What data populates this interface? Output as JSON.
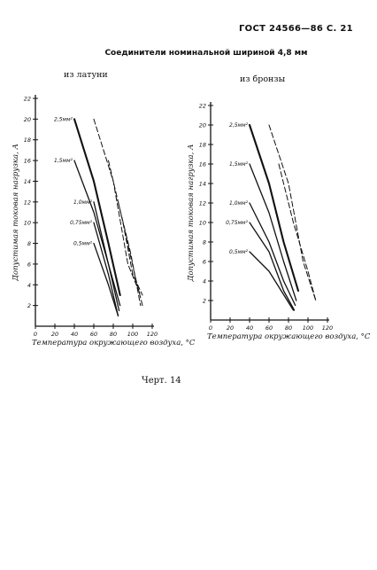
{
  "header": {
    "standard": "ГОСТ 24566—86 С. 21"
  },
  "title": "Соединители номинальной шириной 4,8 мм",
  "caption": "Черт. 14",
  "chart_data": [
    {
      "type": "line",
      "subtitle": "из латуни",
      "xlabel": "Температура окружающего воздуха, °С",
      "ylabel": "Допустимая токовая нагрузка, А",
      "xlim": [
        0,
        120
      ],
      "ylim": [
        0,
        22
      ],
      "xticks": [
        0,
        20,
        40,
        60,
        80,
        100,
        120
      ],
      "yticks": [
        2,
        4,
        6,
        8,
        10,
        12,
        14,
        16,
        18,
        20,
        22
      ],
      "series": [
        {
          "name": "2,5мм²",
          "style": "solid-heavy",
          "points": [
            [
              40,
              20
            ],
            [
              60,
              14
            ],
            [
              75,
              8
            ],
            [
              87,
              3
            ]
          ]
        },
        {
          "name": "1,5мм²",
          "style": "solid",
          "points": [
            [
              40,
              16
            ],
            [
              60,
              11
            ],
            [
              75,
              6
            ],
            [
              87,
              2
            ]
          ]
        },
        {
          "name": "1,0мм²",
          "style": "solid",
          "points": [
            [
              60,
              12
            ],
            [
              75,
              6
            ],
            [
              86,
              1.5
            ]
          ]
        },
        {
          "name": "0,75мм²",
          "style": "solid",
          "points": [
            [
              60,
              10
            ],
            [
              75,
              5
            ],
            [
              85,
              1
            ]
          ]
        },
        {
          "name": "0,5мм²",
          "style": "solid",
          "points": [
            [
              60,
              8
            ],
            [
              75,
              4
            ],
            [
              85,
              1
            ]
          ]
        },
        {
          "name": "",
          "style": "dashed",
          "points": [
            [
              60,
              20
            ],
            [
              80,
              14
            ],
            [
              95,
              6
            ],
            [
              108,
              3
            ]
          ]
        },
        {
          "name": "",
          "style": "dashed",
          "points": [
            [
              75,
              16
            ],
            [
              90,
              10
            ],
            [
              100,
              5
            ],
            [
              110,
              3
            ]
          ]
        },
        {
          "name": "",
          "style": "dashed",
          "points": [
            [
              85,
              12
            ],
            [
              98,
              7
            ],
            [
              108,
              2
            ]
          ]
        },
        {
          "name": "",
          "style": "dashed",
          "points": [
            [
              90,
              10
            ],
            [
              102,
              5
            ],
            [
              110,
              2
            ]
          ]
        }
      ]
    },
    {
      "type": "line",
      "subtitle": "из бронзы",
      "xlabel": "Температура окружающего воздуха, °С",
      "ylabel": "Допустимая токовая нагрузка, А",
      "xlim": [
        0,
        120
      ],
      "ylim": [
        0,
        22
      ],
      "xticks": [
        0,
        20,
        40,
        60,
        80,
        100,
        120
      ],
      "yticks": [
        2,
        4,
        6,
        8,
        10,
        12,
        14,
        16,
        18,
        20,
        22
      ],
      "series": [
        {
          "name": "2,5мм²",
          "style": "solid-heavy",
          "points": [
            [
              40,
              20
            ],
            [
              60,
              14
            ],
            [
              75,
              8
            ],
            [
              90,
              3
            ]
          ]
        },
        {
          "name": "1,5мм²",
          "style": "solid",
          "points": [
            [
              40,
              16
            ],
            [
              60,
              11
            ],
            [
              75,
              6
            ],
            [
              88,
              2
            ]
          ]
        },
        {
          "name": "1,0мм²",
          "style": "solid",
          "points": [
            [
              40,
              12
            ],
            [
              60,
              8
            ],
            [
              75,
              4
            ],
            [
              87,
              1.5
            ]
          ]
        },
        {
          "name": "0,75мм²",
          "style": "solid",
          "points": [
            [
              40,
              10
            ],
            [
              60,
              7
            ],
            [
              75,
              3
            ],
            [
              86,
              1
            ]
          ]
        },
        {
          "name": "0,5мм²",
          "style": "solid",
          "points": [
            [
              40,
              7
            ],
            [
              60,
              5
            ],
            [
              85,
              1
            ]
          ]
        },
        {
          "name": "",
          "style": "dashed",
          "points": [
            [
              60,
              20
            ],
            [
              80,
              14
            ],
            [
              95,
              6
            ],
            [
              108,
              2
            ]
          ]
        },
        {
          "name": "",
          "style": "dashed",
          "points": [
            [
              70,
              16
            ],
            [
              85,
              10
            ],
            [
              100,
              5
            ],
            [
              108,
              2
            ]
          ]
        }
      ]
    }
  ]
}
